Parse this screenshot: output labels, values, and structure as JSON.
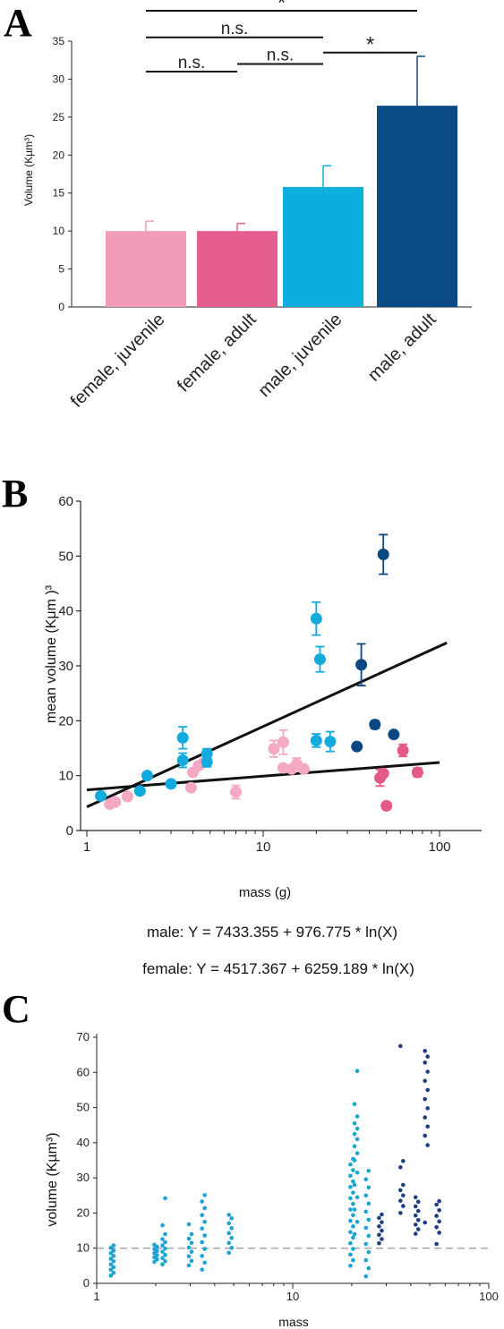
{
  "panels": {
    "a": "A",
    "b": "B",
    "c": "C"
  },
  "chart_data": [
    {
      "panel": "A",
      "type": "bar",
      "ylabel": "Volume (Kµm³)",
      "ylim": [
        0,
        35
      ],
      "yticks": [
        "0",
        "5",
        "10",
        "15",
        "20",
        "25",
        "30",
        "35"
      ],
      "categories": [
        "female, juvenile",
        "female, adult",
        "male, juvenile",
        "male, adult"
      ],
      "values": [
        10.0,
        10.0,
        15.8,
        26.5
      ],
      "errors": [
        1.3,
        1.0,
        2.8,
        6.5
      ],
      "colors": [
        "#F29CB8",
        "#E45F8F",
        "#0BAEDD",
        "#0A4A85"
      ],
      "significance": [
        {
          "from": 0,
          "to": 3,
          "label": "*",
          "y": 39
        },
        {
          "from": 0,
          "to": 2,
          "label": "n.s.",
          "y": 35.5
        },
        {
          "from": 0,
          "to": 1,
          "label": "n.s.",
          "y": 31
        },
        {
          "from": 1,
          "to": 2,
          "label": "n.s.",
          "y": 32
        },
        {
          "from": 2,
          "to": 3,
          "label": "*",
          "y": 33.5
        }
      ]
    },
    {
      "panel": "B",
      "type": "scatter",
      "xscale": "log",
      "xlabel": "mass (g)",
      "ylabel": "mean volume (Kμm )³",
      "xlim": [
        1,
        160
      ],
      "ylim": [
        0,
        60
      ],
      "xticks": [
        "1",
        "10",
        "100"
      ],
      "yticks": [
        "0",
        "10",
        "20",
        "30",
        "40",
        "50",
        "60"
      ],
      "equations": {
        "male": "male: Y = 7433.355 + 976.775 * ln(X)",
        "female": "female: Y = 4517.367 + 6259.189 * ln(X)"
      },
      "colors": {
        "female, juvenile": "#F5A8C3",
        "female, adult": "#E4588A",
        "male, juvenile": "#13ABDD",
        "male, adult": "#0B4782",
        "fit": "#111111"
      },
      "series": [
        {
          "group": "female, juvenile",
          "points": [
            [
              1.35,
              4.8
            ],
            [
              1.45,
              5.2
            ],
            [
              1.7,
              6.2
            ],
            [
              3.9,
              7.8
            ],
            [
              4.0,
              10.6
            ],
            [
              4.3,
              11.8
            ],
            [
              4.6,
              12.4
            ],
            [
              7.0,
              7.0
            ],
            [
              11.5,
              14.9
            ],
            [
              13.0,
              16.1
            ],
            [
              13.0,
              11.4
            ],
            [
              14.5,
              11.2
            ],
            [
              15.5,
              12.1
            ],
            [
              17.0,
              11.2
            ]
          ],
          "errors": [
            0,
            0,
            0,
            0,
            0,
            0,
            0,
            1.2,
            1.5,
            2.2,
            0,
            0,
            1.1,
            0
          ]
        },
        {
          "group": "female, adult",
          "points": [
            [
              46,
              9.6
            ],
            [
              48,
              10.4
            ],
            [
              50,
              4.5
            ],
            [
              62,
              14.6
            ],
            [
              75,
              10.6
            ]
          ],
          "errors": [
            1.5,
            0,
            0,
            1.1,
            0.8
          ]
        },
        {
          "group": "male, juvenile",
          "points": [
            [
              1.2,
              6.3
            ],
            [
              2.0,
              7.2
            ],
            [
              2.2,
              10.0
            ],
            [
              3.0,
              8.5
            ],
            [
              3.5,
              12.8
            ],
            [
              3.5,
              16.9
            ],
            [
              4.8,
              12.5
            ],
            [
              4.8,
              14.0
            ],
            [
              20,
              38.6
            ],
            [
              20,
              16.4
            ],
            [
              21,
              31.2
            ],
            [
              24,
              16.2
            ]
          ],
          "errors": [
            0,
            0.5,
            0.5,
            0,
            1.3,
            2.0,
            0.9,
            0.9,
            3.0,
            1.2,
            2.3,
            1.8
          ]
        },
        {
          "group": "male, adult",
          "points": [
            [
              34,
              15.3
            ],
            [
              36,
              30.2
            ],
            [
              43,
              19.3
            ],
            [
              48,
              50.3
            ],
            [
              55,
              17.5
            ]
          ],
          "errors": [
            0,
            3.8,
            0.7,
            3.6,
            0
          ]
        }
      ],
      "fits": [
        {
          "name": "male",
          "from": [
            1,
            4.3
          ],
          "to": [
            110,
            34.2
          ]
        },
        {
          "name": "female",
          "from": [
            1,
            7.4
          ],
          "to": [
            100,
            12.4
          ]
        }
      ]
    },
    {
      "panel": "C",
      "type": "scatter",
      "xscale": "log",
      "xlabel": "mass",
      "ylabel": "volume (Kµm³)",
      "xlim": [
        1,
        100
      ],
      "ylim": [
        0,
        70
      ],
      "xticks": [
        "1",
        "10",
        "100"
      ],
      "yticks": [
        "0",
        "10",
        "20",
        "30",
        "40",
        "50",
        "60",
        "70"
      ],
      "reference_line": {
        "y": 10,
        "style": "dashed",
        "color": "#999999"
      },
      "colors": {
        "male, juvenile": "#1BA3D3",
        "male, adult": "#1E3F82"
      },
      "series": [
        {
          "group": "male, juvenile",
          "columns": [
            {
              "x": 1.2,
              "y": [
                2.2,
                3.0,
                3.9,
                4.6,
                5.4,
                6.3,
                7.0,
                7.8,
                8.6,
                9.3,
                10.1,
                10.8
              ]
            },
            {
              "x": 2.0,
              "y": [
                6.1,
                6.8,
                7.4,
                8.0,
                8.6,
                9.2,
                9.8,
                10.4,
                11.0
              ]
            },
            {
              "x": 2.2,
              "y": [
                5.4,
                6.3,
                7.2,
                8.1,
                9.0,
                9.9,
                10.8,
                11.7,
                12.6,
                14.0,
                16.5,
                24.2
              ]
            },
            {
              "x": 3.0,
              "y": [
                5.1,
                6.4,
                7.7,
                9.0,
                10.2,
                11.5,
                12.7,
                14.0,
                16.8
              ]
            },
            {
              "x": 3.5,
              "y": [
                3.9,
                5.9,
                7.8,
                9.8,
                11.7,
                13.6,
                15.6,
                17.5,
                19.4,
                21.4,
                23.3,
                25.1
              ]
            },
            {
              "x": 4.8,
              "y": [
                8.7,
                10.1,
                11.5,
                12.9,
                14.3,
                15.7,
                17.1,
                18.5,
                19.5
              ]
            },
            {
              "x": 20,
              "y": [
                5.0,
                6.6,
                8.2,
                9.8,
                11.4,
                13.0,
                14.6,
                16.2,
                17.8,
                19.4,
                21.0,
                22.6,
                24.2,
                25.8,
                27.4,
                29.0,
                30.6,
                32.2,
                33.8,
                35.4
              ]
            },
            {
              "x": 21,
              "y": [
                14.0,
                17.5,
                21.0,
                24.5,
                28.0,
                31.5,
                35.0,
                37.0,
                39.0,
                41.0,
                42.5,
                44.0,
                45.5,
                47.5,
                51.0,
                60.4
              ]
            },
            {
              "x": 24,
              "y": [
                2.0,
                4.3,
                6.6,
                8.9,
                11.2,
                13.5,
                15.8,
                18.1,
                20.4,
                22.7,
                25.0,
                27.3,
                29.6,
                32.0
              ]
            }
          ]
        },
        {
          "group": "male, adult",
          "columns": [
            {
              "x": 28,
              "y": [
                11.4,
                12.6,
                13.8,
                15.0,
                16.2,
                17.4,
                18.6,
                19.6
              ]
            },
            {
              "x": 36,
              "y": [
                20.0,
                22.0,
                23.5,
                25.0,
                26.5,
                28.0,
                33.0,
                34.8,
                67.5
              ]
            },
            {
              "x": 43,
              "y": [
                14.1,
                15.4,
                16.7,
                18.0,
                19.3,
                20.6,
                21.9,
                23.2,
                24.5
              ]
            },
            {
              "x": 48,
              "y": [
                17.3,
                39.3,
                42.0,
                44.6,
                47.2,
                49.8,
                52.4,
                55.0,
                57.6,
                60.2,
                62.8,
                64.5,
                66.1
              ]
            },
            {
              "x": 55,
              "y": [
                11.2,
                14.4,
                16.0,
                17.6,
                19.2,
                20.8,
                22.4,
                23.4
              ]
            }
          ]
        }
      ]
    }
  ]
}
